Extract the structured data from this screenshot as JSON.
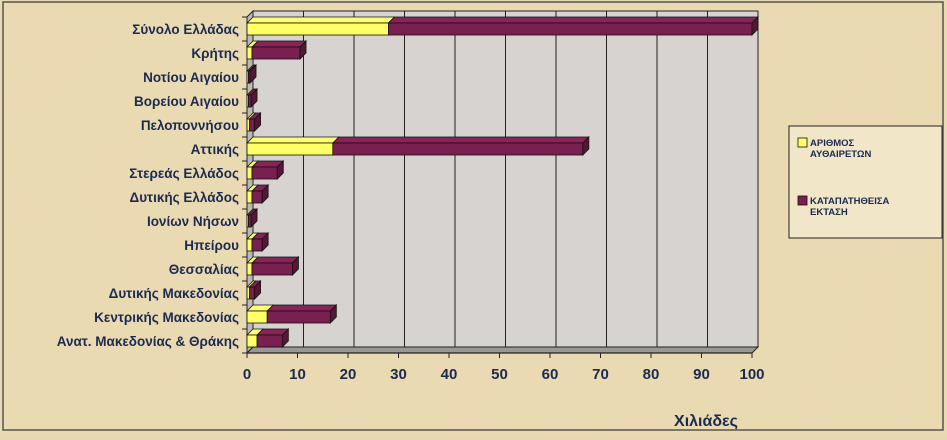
{
  "chart_data": {
    "type": "bar",
    "orientation": "horizontal",
    "stacked": true,
    "categories": [
      "Σύνολο Ελλάδας",
      "Κρήτης",
      "Νοτίου Αιγαίου",
      "Βορείου Αιγαίου",
      "Πελοποννήσου",
      "Αττικής",
      "Στερεάς Ελλάδος",
      "Δυτικής Ελλάδος",
      "Ιονίων Νήσων",
      "Ηπείρου",
      "Θεσσαλίας",
      "Δυτικής Μακεδονίας",
      "Κεντρικής Μακεδονίας",
      "Ανατ. Μακεδονίας & Θράκης"
    ],
    "series": [
      {
        "name": "ΑΡΙΘΜΟΣ ΑΥΘΑΙΡΕΤΩΝ",
        "color": "#ffff66",
        "values": [
          28,
          1,
          0.3,
          0.3,
          0.5,
          17,
          1,
          1,
          0.3,
          1,
          1,
          0.5,
          4,
          2
        ]
      },
      {
        "name": "ΚΑΤΑΠΑΤΗΘΕΙΣΑ ΕΚΤΑΣΗ",
        "color": "#7a2050",
        "values": [
          72,
          9.5,
          0.3,
          0.5,
          1,
          49.5,
          5,
          2,
          0.5,
          2,
          8,
          1,
          12.5,
          5
        ]
      }
    ],
    "xlim": [
      0,
      100
    ],
    "xticks": [
      0,
      10,
      20,
      30,
      40,
      50,
      60,
      70,
      80,
      90,
      100
    ],
    "xlabel": "Χιλιάδες",
    "legend": "right",
    "grid": true
  }
}
